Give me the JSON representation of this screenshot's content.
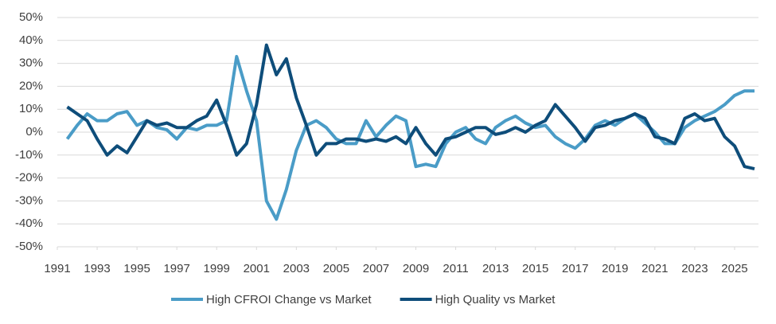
{
  "chart_data": {
    "type": "line",
    "x": [
      1991.5,
      1992,
      1992.5,
      1993,
      1993.5,
      1994,
      1994.5,
      1995,
      1995.5,
      1996,
      1996.5,
      1997,
      1997.5,
      1998,
      1998.5,
      1999,
      1999.5,
      2000,
      2000.5,
      2001,
      2001.5,
      2002,
      2002.5,
      2003,
      2003.5,
      2004,
      2004.5,
      2005,
      2005.5,
      2006,
      2006.5,
      2007,
      2007.5,
      2008,
      2008.5,
      2009,
      2009.5,
      2010,
      2010.5,
      2011,
      2011.5,
      2012,
      2012.5,
      2013,
      2013.5,
      2014,
      2014.5,
      2015,
      2015.5,
      2016,
      2016.5,
      2017,
      2017.5,
      2018,
      2018.5,
      2019,
      2019.5,
      2020,
      2020.5,
      2021,
      2021.5,
      2022,
      2022.5,
      2023,
      2023.5,
      2024,
      2024.5,
      2025,
      2025.5,
      2026
    ],
    "series": [
      {
        "name": "High CFROI Change vs Market",
        "color": "#4a9cc7",
        "values": [
          -3,
          3,
          8,
          5,
          5,
          8,
          9,
          3,
          5,
          2,
          1,
          -3,
          2,
          1,
          3,
          3,
          5,
          33,
          18,
          5,
          -30,
          -38,
          -25,
          -8,
          3,
          5,
          2,
          -3,
          -5,
          -5,
          5,
          -2,
          3,
          7,
          5,
          -15,
          -14,
          -15,
          -5,
          0,
          2,
          -3,
          -5,
          2,
          5,
          7,
          4,
          2,
          3,
          -2,
          -5,
          -7,
          -3,
          3,
          5,
          3,
          6,
          8,
          4,
          0,
          -5,
          -5,
          2,
          5,
          7,
          9,
          12,
          16,
          18,
          18
        ]
      },
      {
        "name": "High Quality vs Market",
        "color": "#0e4d7a",
        "values": [
          11,
          8,
          5,
          -3,
          -10,
          -6,
          -9,
          -2,
          5,
          3,
          4,
          2,
          2,
          5,
          7,
          14,
          3,
          -10,
          -5,
          12,
          38,
          25,
          32,
          15,
          3,
          -10,
          -5,
          -5,
          -3,
          -3,
          -4,
          -3,
          -4,
          -2,
          -5,
          2,
          -5,
          -10,
          -3,
          -2,
          0,
          2,
          2,
          -1,
          0,
          2,
          0,
          3,
          5,
          12,
          7,
          2,
          -4,
          2,
          3,
          5,
          6,
          8,
          6,
          -2,
          -3,
          -5,
          6,
          8,
          5,
          6,
          -2,
          -6,
          -15,
          -16
        ]
      }
    ],
    "xlim": [
      1991,
      2026.2
    ],
    "xticks": [
      1991,
      1993,
      1995,
      1997,
      1999,
      2001,
      2003,
      2005,
      2007,
      2009,
      2011,
      2013,
      2015,
      2017,
      2019,
      2021,
      2023,
      2025
    ],
    "ylim": [
      -50,
      50
    ],
    "yticks": [
      {
        "value": -50,
        "label": "-50%"
      },
      {
        "value": -40,
        "label": "-40%"
      },
      {
        "value": -30,
        "label": "-30%"
      },
      {
        "value": -20,
        "label": "-20%"
      },
      {
        "value": -10,
        "label": "-10%"
      },
      {
        "value": 0,
        "label": "0%"
      },
      {
        "value": 10,
        "label": "10%"
      },
      {
        "value": 20,
        "label": "20%"
      },
      {
        "value": 30,
        "label": "30%"
      },
      {
        "value": 40,
        "label": "40%"
      },
      {
        "value": 50,
        "label": "50%"
      }
    ],
    "grid": true
  }
}
